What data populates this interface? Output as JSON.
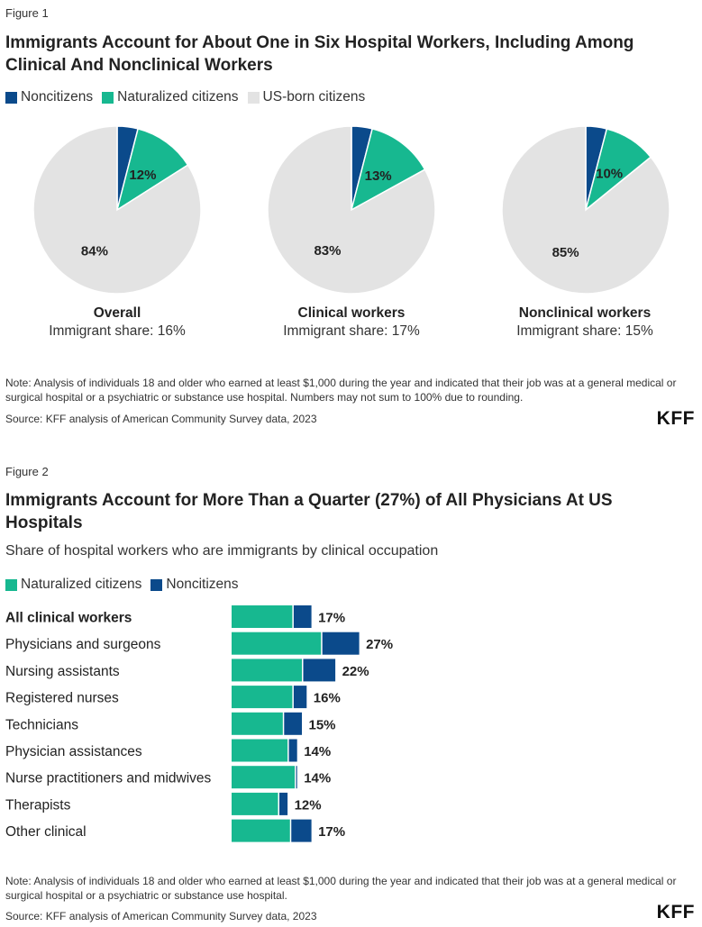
{
  "figure1": {
    "label": "Figure 1",
    "title": "Immigrants Account for About One in Six Hospital Workers, Including Among Clinical And Nonclinical Workers",
    "legend": [
      {
        "name": "Noncitizens",
        "color": "#0b4a8b"
      },
      {
        "name": "Naturalized citizens",
        "color": "#17b890"
      },
      {
        "name": "US-born citizens",
        "color": "#e3e3e3"
      }
    ],
    "note": "Note: Analysis of individuals 18 and older who earned at least $1,000 during the year and indicated that their job was at a general medical or surgical hospital or a psychiatric or substance use hospital. Numbers may not sum to 100% due to rounding.",
    "source": "Source: KFF analysis of American Community Survey data, 2023",
    "logo": "KFF"
  },
  "figure2": {
    "label": "Figure 2",
    "title": "Immigrants Account for More Than a Quarter (27%) of All Physicians At US Hospitals",
    "subtitle": "Share of hospital workers who are immigrants by clinical occupation",
    "legend": [
      {
        "name": "Naturalized citizens",
        "color": "#17b890"
      },
      {
        "name": "Noncitizens",
        "color": "#0b4a8b"
      }
    ],
    "note": "Note: Analysis of individuals 18 and older who earned at least $1,000 during the year and indicated that their job was at a general medical or surgical hospital or a psychiatric or substance use hospital.",
    "source": "Source: KFF analysis of American Community Survey data, 2023",
    "logo": "KFF"
  },
  "chart_data": [
    {
      "type": "pie",
      "title": "Immigrants Account for About One in Six Hospital Workers, Including Among Clinical And Nonclinical Workers",
      "legend": [
        "Noncitizens",
        "Naturalized citizens",
        "US-born citizens"
      ],
      "legend_position": "top-left",
      "colors": [
        "#0b4a8b",
        "#17b890",
        "#e3e3e3"
      ],
      "pies": [
        {
          "name": "Overall",
          "caption": "Immigrant share: 16%",
          "values": [
            4,
            12,
            84
          ],
          "labels": [
            "",
            "12%",
            "84%"
          ]
        },
        {
          "name": "Clinical workers",
          "caption": "Immigrant share: 17%",
          "values": [
            4,
            13,
            83
          ],
          "labels": [
            "",
            "13%",
            "83%"
          ]
        },
        {
          "name": "Nonclinical workers",
          "caption": "Immigrant share: 15%",
          "values": [
            4,
            10,
            85
          ],
          "labels": [
            "",
            "10%",
            "85%"
          ]
        }
      ]
    },
    {
      "type": "bar",
      "orientation": "horizontal",
      "stacked": true,
      "title": "Immigrants Account for More Than a Quarter (27%) of All Physicians At US Hospitals",
      "subtitle": "Share of hospital workers who are immigrants by clinical occupation",
      "legend_position": "top-left",
      "grid": false,
      "xlim": [
        0,
        30
      ],
      "categories": [
        "All clinical workers",
        "Physicians and surgeons",
        "Nursing assistants",
        "Registered nurses",
        "Technicians",
        "Physician assistances",
        "Nurse practitioners and midwives",
        "Therapists",
        "Other clinical"
      ],
      "bold_categories": [
        "All clinical workers"
      ],
      "series": [
        {
          "name": "Naturalized citizens",
          "color": "#17b890",
          "values": [
            13,
            19,
            15,
            13,
            11,
            12,
            13.5,
            10,
            12.5
          ]
        },
        {
          "name": "Noncitizens",
          "color": "#0b4a8b",
          "values": [
            4,
            8,
            7,
            3,
            4,
            2,
            0.5,
            2,
            4.5
          ]
        }
      ],
      "totals": [
        "17%",
        "27%",
        "22%",
        "16%",
        "15%",
        "14%",
        "14%",
        "12%",
        "17%"
      ]
    }
  ]
}
